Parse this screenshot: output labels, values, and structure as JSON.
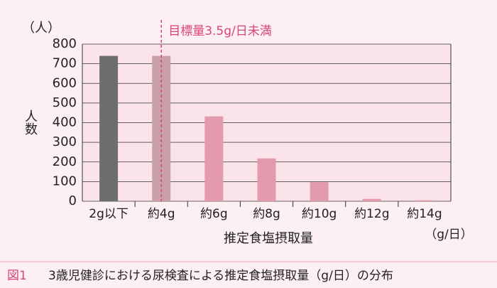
{
  "chart_data": {
    "type": "bar",
    "y_label_top": "（人）",
    "y_label": "人数",
    "x_label": "推定食塩摂取量",
    "x_unit": "（g/日）",
    "annotation": "目標量3.5g/日未満",
    "categories": [
      "2g以下",
      "約4g",
      "約6g",
      "約8g",
      "約10g",
      "約12g",
      "約14g"
    ],
    "values": [
      740,
      740,
      432,
      218,
      97,
      12,
      5
    ],
    "colors": [
      "#6e6e6e",
      "#c9a0a8",
      "#e39aac",
      "#e39aac",
      "#e39aac",
      "#e39aac",
      "#e39aac"
    ],
    "ylim": [
      0,
      800
    ],
    "yticks": [
      0,
      100,
      200,
      300,
      400,
      500,
      600,
      700,
      800
    ],
    "grid": true
  },
  "caption": {
    "label": "図1",
    "text": "3歳児健診における尿検査による推定食塩摂取量（g/日）の分布"
  }
}
